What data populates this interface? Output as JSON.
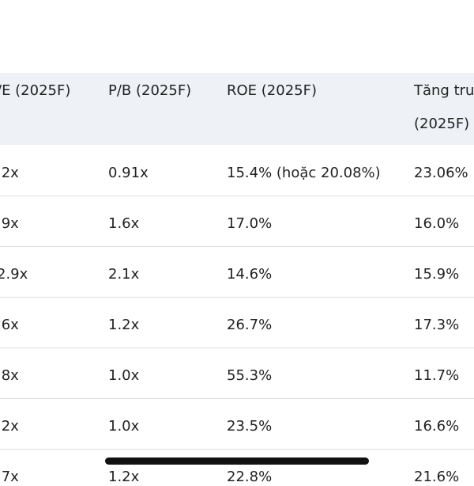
{
  "table": {
    "header": [
      [
        "/E (2025F)"
      ],
      [
        "P/B (2025F)"
      ],
      [
        "ROE (2025F)"
      ],
      [
        "Tăng tru",
        "(2025F)"
      ]
    ],
    "rows": [
      [
        ".2x",
        "0.91x",
        "15.4% (hoặc 20.08%)",
        "23.06%"
      ],
      [
        ".9x",
        "1.6x",
        "17.0%",
        "16.0%"
      ],
      [
        "2.9x",
        "2.1x",
        "14.6%",
        "15.9%"
      ],
      [
        ".6x",
        "1.2x",
        "26.7%",
        "17.3%"
      ],
      [
        ".8x",
        "1.0x",
        "55.3%",
        "11.7%"
      ],
      [
        ".2x",
        "1.0x",
        "23.5%",
        "16.6%"
      ],
      [
        ".7x",
        "1.2x",
        "22.8%",
        "21.6%"
      ]
    ]
  }
}
